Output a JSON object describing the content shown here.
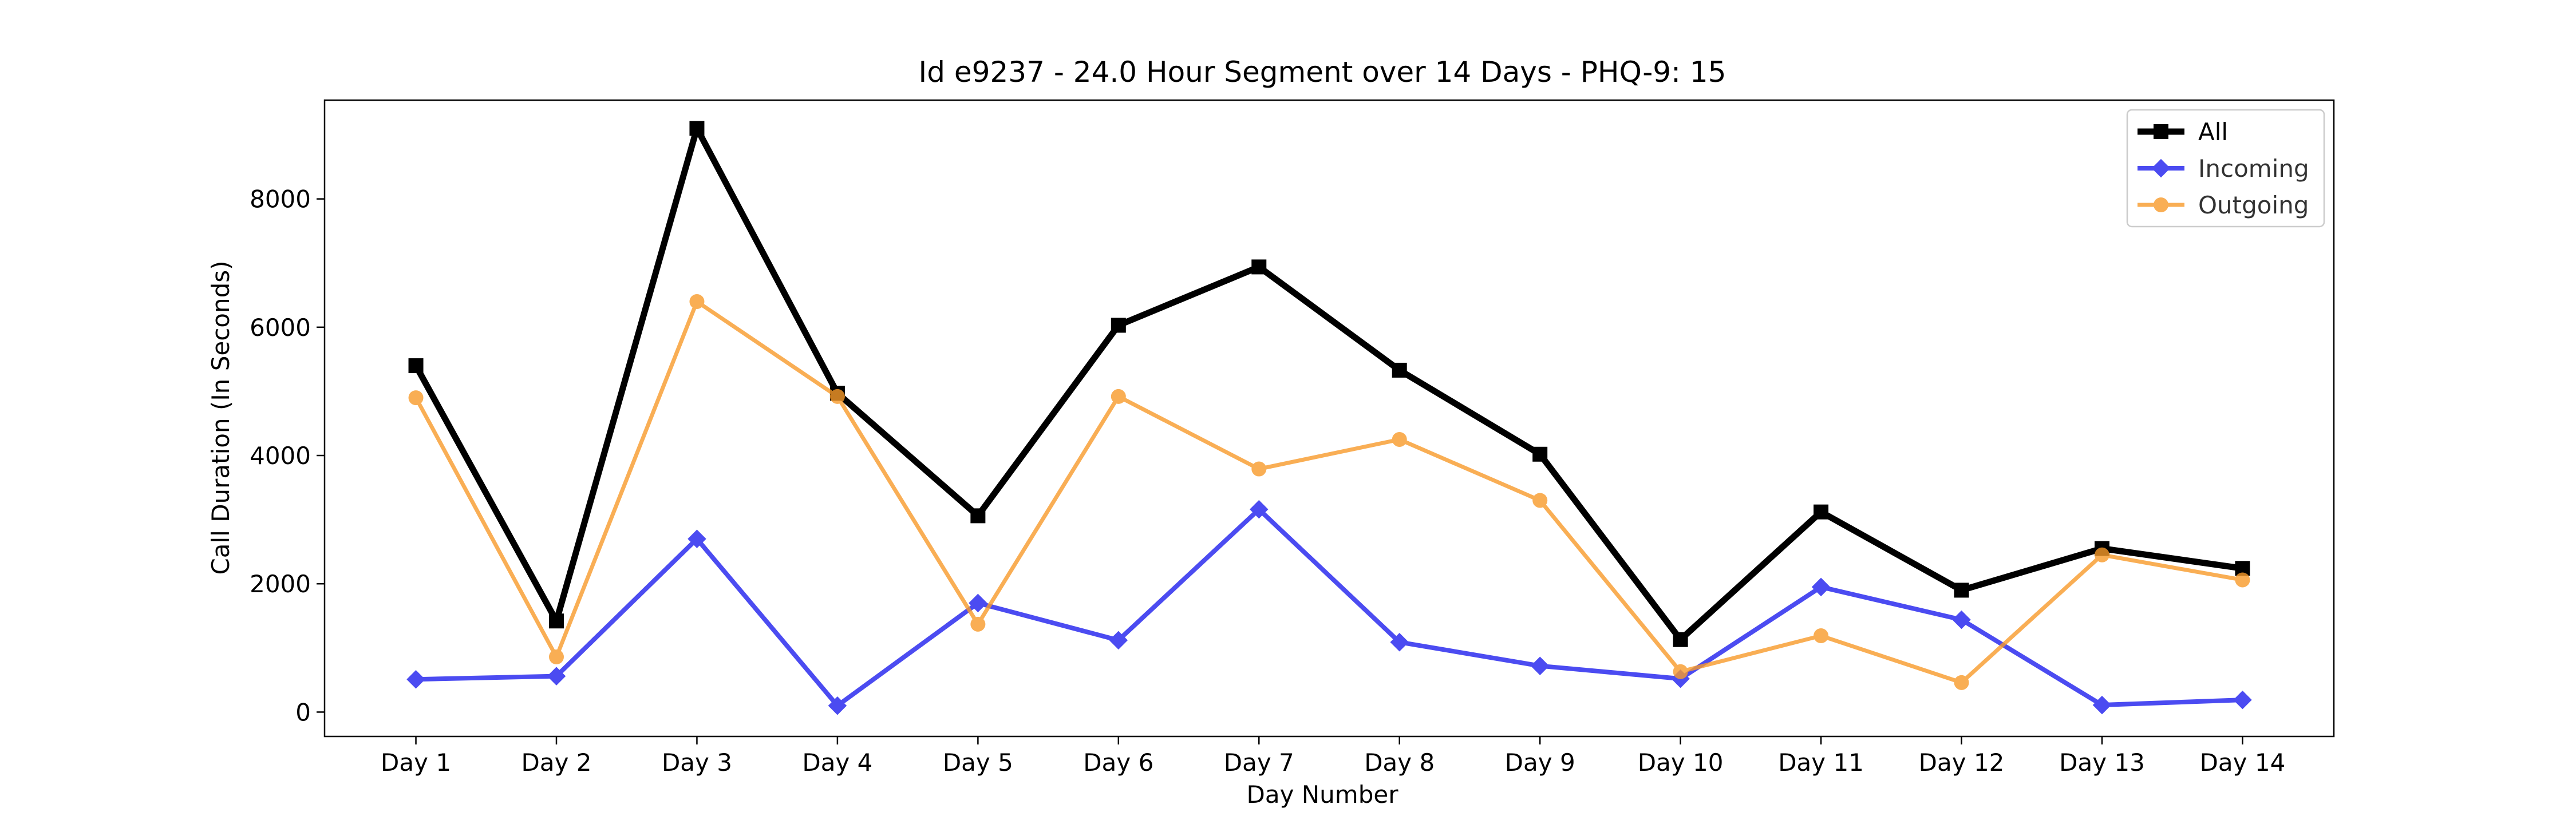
{
  "chart_data": {
    "type": "line",
    "title": "Id e9237 - 24.0 Hour Segment over 14 Days - PHQ-9: 15",
    "xlabel": "Day Number",
    "ylabel": "Call Duration (In Seconds)",
    "categories": [
      "Day 1",
      "Day 2",
      "Day 3",
      "Day 4",
      "Day 5",
      "Day 6",
      "Day 7",
      "Day 8",
      "Day 9",
      "Day 10",
      "Day 11",
      "Day 12",
      "Day 13",
      "Day 14"
    ],
    "ylim": [
      -380,
      9540
    ],
    "yticks": [
      0,
      2000,
      4000,
      6000,
      8000
    ],
    "grid": false,
    "legend_position": "top-right",
    "series": [
      {
        "name": "All",
        "color": "#000000",
        "marker": "square",
        "values": [
          5400,
          1420,
          9100,
          4970,
          3060,
          6030,
          6940,
          5330,
          4020,
          1130,
          3120,
          1900,
          2550,
          2240
        ]
      },
      {
        "name": "Incoming",
        "color": "#1f1fee",
        "marker": "diamond",
        "values": [
          510,
          560,
          2700,
          100,
          1700,
          1120,
          3160,
          1090,
          720,
          520,
          1950,
          1440,
          110,
          190
        ]
      },
      {
        "name": "Outgoing",
        "color": "#f89a2a",
        "marker": "circle",
        "values": [
          4900,
          860,
          6400,
          4920,
          1370,
          4920,
          3790,
          4250,
          3300,
          630,
          1190,
          460,
          2450,
          2060
        ]
      }
    ]
  }
}
